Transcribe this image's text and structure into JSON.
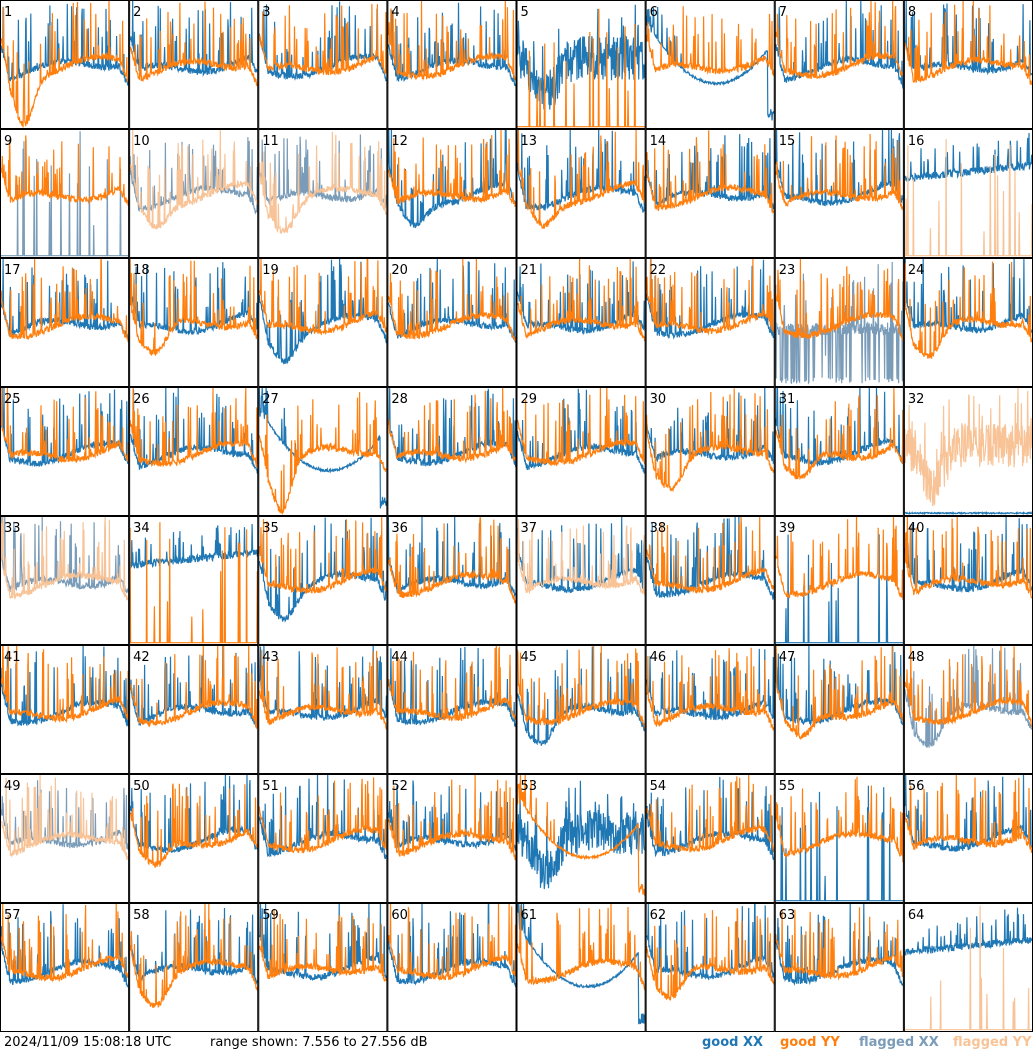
{
  "chart_data": {
    "type": "line",
    "title": "",
    "panel_labels": [
      "1",
      "2",
      "3",
      "4",
      "5",
      "6",
      "7",
      "8",
      "9",
      "10",
      "11",
      "12",
      "13",
      "14",
      "15",
      "16",
      "17",
      "18",
      "19",
      "20",
      "21",
      "22",
      "23",
      "24",
      "25",
      "26",
      "27",
      "28",
      "29",
      "30",
      "31",
      "32",
      "33",
      "34",
      "35",
      "36",
      "37",
      "38",
      "39",
      "40",
      "41",
      "42",
      "43",
      "44",
      "45",
      "46",
      "47",
      "48",
      "49",
      "50",
      "51",
      "52",
      "53",
      "54",
      "55",
      "56",
      "57",
      "58",
      "59",
      "60",
      "61",
      "62",
      "63",
      "64"
    ],
    "ylim": [
      7.556,
      27.556
    ],
    "y_unit": "dB",
    "legend_placement": "bottom-right",
    "series": [
      {
        "name": "good XX",
        "color": "#1f77b4"
      },
      {
        "name": "good YY",
        "color": "#ff7f0e"
      },
      {
        "name": "flagged XX",
        "color": "#7a9cb8"
      },
      {
        "name": "flagged YY",
        "color": "#f8c396"
      }
    ],
    "panels": [
      {
        "label": "1",
        "flag": "none",
        "xx": "normal",
        "yy": "deepdip"
      },
      {
        "label": "2",
        "flag": "none",
        "xx": "normal",
        "yy": "normal"
      },
      {
        "label": "3",
        "flag": "none",
        "xx": "normal",
        "yy": "normal"
      },
      {
        "label": "4",
        "flag": "none",
        "xx": "normal",
        "yy": "normal"
      },
      {
        "label": "5",
        "flag": "none",
        "xx": "noisy",
        "yy": "spiky"
      },
      {
        "label": "6",
        "flag": "none",
        "xx": "bowl",
        "yy": "normal"
      },
      {
        "label": "7",
        "flag": "none",
        "xx": "normal",
        "yy": "normal"
      },
      {
        "label": "8",
        "flag": "none",
        "xx": "normal",
        "yy": "normal"
      },
      {
        "label": "9",
        "flag": "xx",
        "xx": "spiky",
        "yy": "normal"
      },
      {
        "label": "10",
        "flag": "both",
        "xx": "normal",
        "yy": "dip"
      },
      {
        "label": "11",
        "flag": "both",
        "xx": "normal",
        "yy": "dip"
      },
      {
        "label": "12",
        "flag": "none",
        "xx": "dip",
        "yy": "normal"
      },
      {
        "label": "13",
        "flag": "none",
        "xx": "normal",
        "yy": "dip"
      },
      {
        "label": "14",
        "flag": "none",
        "xx": "normal",
        "yy": "normal"
      },
      {
        "label": "15",
        "flag": "none",
        "xx": "normal",
        "yy": "normal"
      },
      {
        "label": "16",
        "flag": "yy",
        "xx": "high",
        "yy": "spiky"
      },
      {
        "label": "17",
        "flag": "none",
        "xx": "normal",
        "yy": "normal"
      },
      {
        "label": "18",
        "flag": "none",
        "xx": "normal",
        "yy": "dip"
      },
      {
        "label": "19",
        "flag": "none",
        "xx": "dip",
        "yy": "normal"
      },
      {
        "label": "20",
        "flag": "none",
        "xx": "normal",
        "yy": "normal"
      },
      {
        "label": "21",
        "flag": "none",
        "xx": "normal",
        "yy": "normal"
      },
      {
        "label": "22",
        "flag": "none",
        "xx": "normal",
        "yy": "normal"
      },
      {
        "label": "23",
        "flag": "xx",
        "xx": "dropout",
        "yy": "normal"
      },
      {
        "label": "24",
        "flag": "none",
        "xx": "normal",
        "yy": "dip"
      },
      {
        "label": "25",
        "flag": "none",
        "xx": "normal",
        "yy": "normal"
      },
      {
        "label": "26",
        "flag": "none",
        "xx": "normal",
        "yy": "normal"
      },
      {
        "label": "27",
        "flag": "none",
        "xx": "bowl",
        "yy": "deepdip"
      },
      {
        "label": "28",
        "flag": "none",
        "xx": "normal",
        "yy": "normal"
      },
      {
        "label": "29",
        "flag": "none",
        "xx": "normal",
        "yy": "normal"
      },
      {
        "label": "30",
        "flag": "none",
        "xx": "normal",
        "yy": "dip"
      },
      {
        "label": "31",
        "flag": "none",
        "xx": "normal",
        "yy": "dip"
      },
      {
        "label": "32",
        "flag": "yy",
        "xx": "flat",
        "yy": "noisy"
      },
      {
        "label": "33",
        "flag": "both",
        "xx": "normal",
        "yy": "normal"
      },
      {
        "label": "34",
        "flag": "none",
        "xx": "high",
        "yy": "spiky"
      },
      {
        "label": "35",
        "flag": "none",
        "xx": "dip",
        "yy": "normal"
      },
      {
        "label": "36",
        "flag": "none",
        "xx": "normal",
        "yy": "normal"
      },
      {
        "label": "37",
        "flag": "yy",
        "xx": "normal",
        "yy": "normal"
      },
      {
        "label": "38",
        "flag": "none",
        "xx": "normal",
        "yy": "normal"
      },
      {
        "label": "39",
        "flag": "none",
        "xx": "spiky",
        "yy": "normal"
      },
      {
        "label": "40",
        "flag": "none",
        "xx": "normal",
        "yy": "normal"
      },
      {
        "label": "41",
        "flag": "none",
        "xx": "normal",
        "yy": "normal"
      },
      {
        "label": "42",
        "flag": "none",
        "xx": "normal",
        "yy": "normal"
      },
      {
        "label": "43",
        "flag": "none",
        "xx": "normal",
        "yy": "normal"
      },
      {
        "label": "44",
        "flag": "none",
        "xx": "normal",
        "yy": "normal"
      },
      {
        "label": "45",
        "flag": "none",
        "xx": "dip",
        "yy": "normal"
      },
      {
        "label": "46",
        "flag": "none",
        "xx": "normal",
        "yy": "normal"
      },
      {
        "label": "47",
        "flag": "none",
        "xx": "normal",
        "yy": "dip"
      },
      {
        "label": "48",
        "flag": "xx",
        "xx": "dip",
        "yy": "normal"
      },
      {
        "label": "49",
        "flag": "both",
        "xx": "normal",
        "yy": "normal"
      },
      {
        "label": "50",
        "flag": "none",
        "xx": "normal",
        "yy": "dip"
      },
      {
        "label": "51",
        "flag": "none",
        "xx": "normal",
        "yy": "normal"
      },
      {
        "label": "52",
        "flag": "none",
        "xx": "normal",
        "yy": "normal"
      },
      {
        "label": "53",
        "flag": "none",
        "xx": "noisy",
        "yy": "bowl"
      },
      {
        "label": "54",
        "flag": "none",
        "xx": "normal",
        "yy": "normal"
      },
      {
        "label": "55",
        "flag": "none",
        "xx": "spiky",
        "yy": "normal"
      },
      {
        "label": "56",
        "flag": "none",
        "xx": "normal",
        "yy": "normal"
      },
      {
        "label": "57",
        "flag": "none",
        "xx": "normal",
        "yy": "normal"
      },
      {
        "label": "58",
        "flag": "none",
        "xx": "normal",
        "yy": "dip"
      },
      {
        "label": "59",
        "flag": "none",
        "xx": "normal",
        "yy": "normal"
      },
      {
        "label": "60",
        "flag": "none",
        "xx": "normal",
        "yy": "normal"
      },
      {
        "label": "61",
        "flag": "none",
        "xx": "bowl",
        "yy": "normal"
      },
      {
        "label": "62",
        "flag": "none",
        "xx": "normal",
        "yy": "dip"
      },
      {
        "label": "63",
        "flag": "none",
        "xx": "normal",
        "yy": "normal"
      },
      {
        "label": "64",
        "flag": "yy",
        "xx": "high",
        "yy": "spiky"
      }
    ]
  },
  "footer": {
    "timestamp": "2024/11/09 15:08:18 UTC",
    "range_text": "range shown: 7.556 to 27.556 dB",
    "legend": [
      {
        "label": "good XX",
        "color": "#1f77b4"
      },
      {
        "label": "good YY",
        "color": "#ff7f0e"
      },
      {
        "label": "flagged XX",
        "color": "#7a9cb8"
      },
      {
        "label": "flagged YY",
        "color": "#f8c396"
      }
    ]
  }
}
